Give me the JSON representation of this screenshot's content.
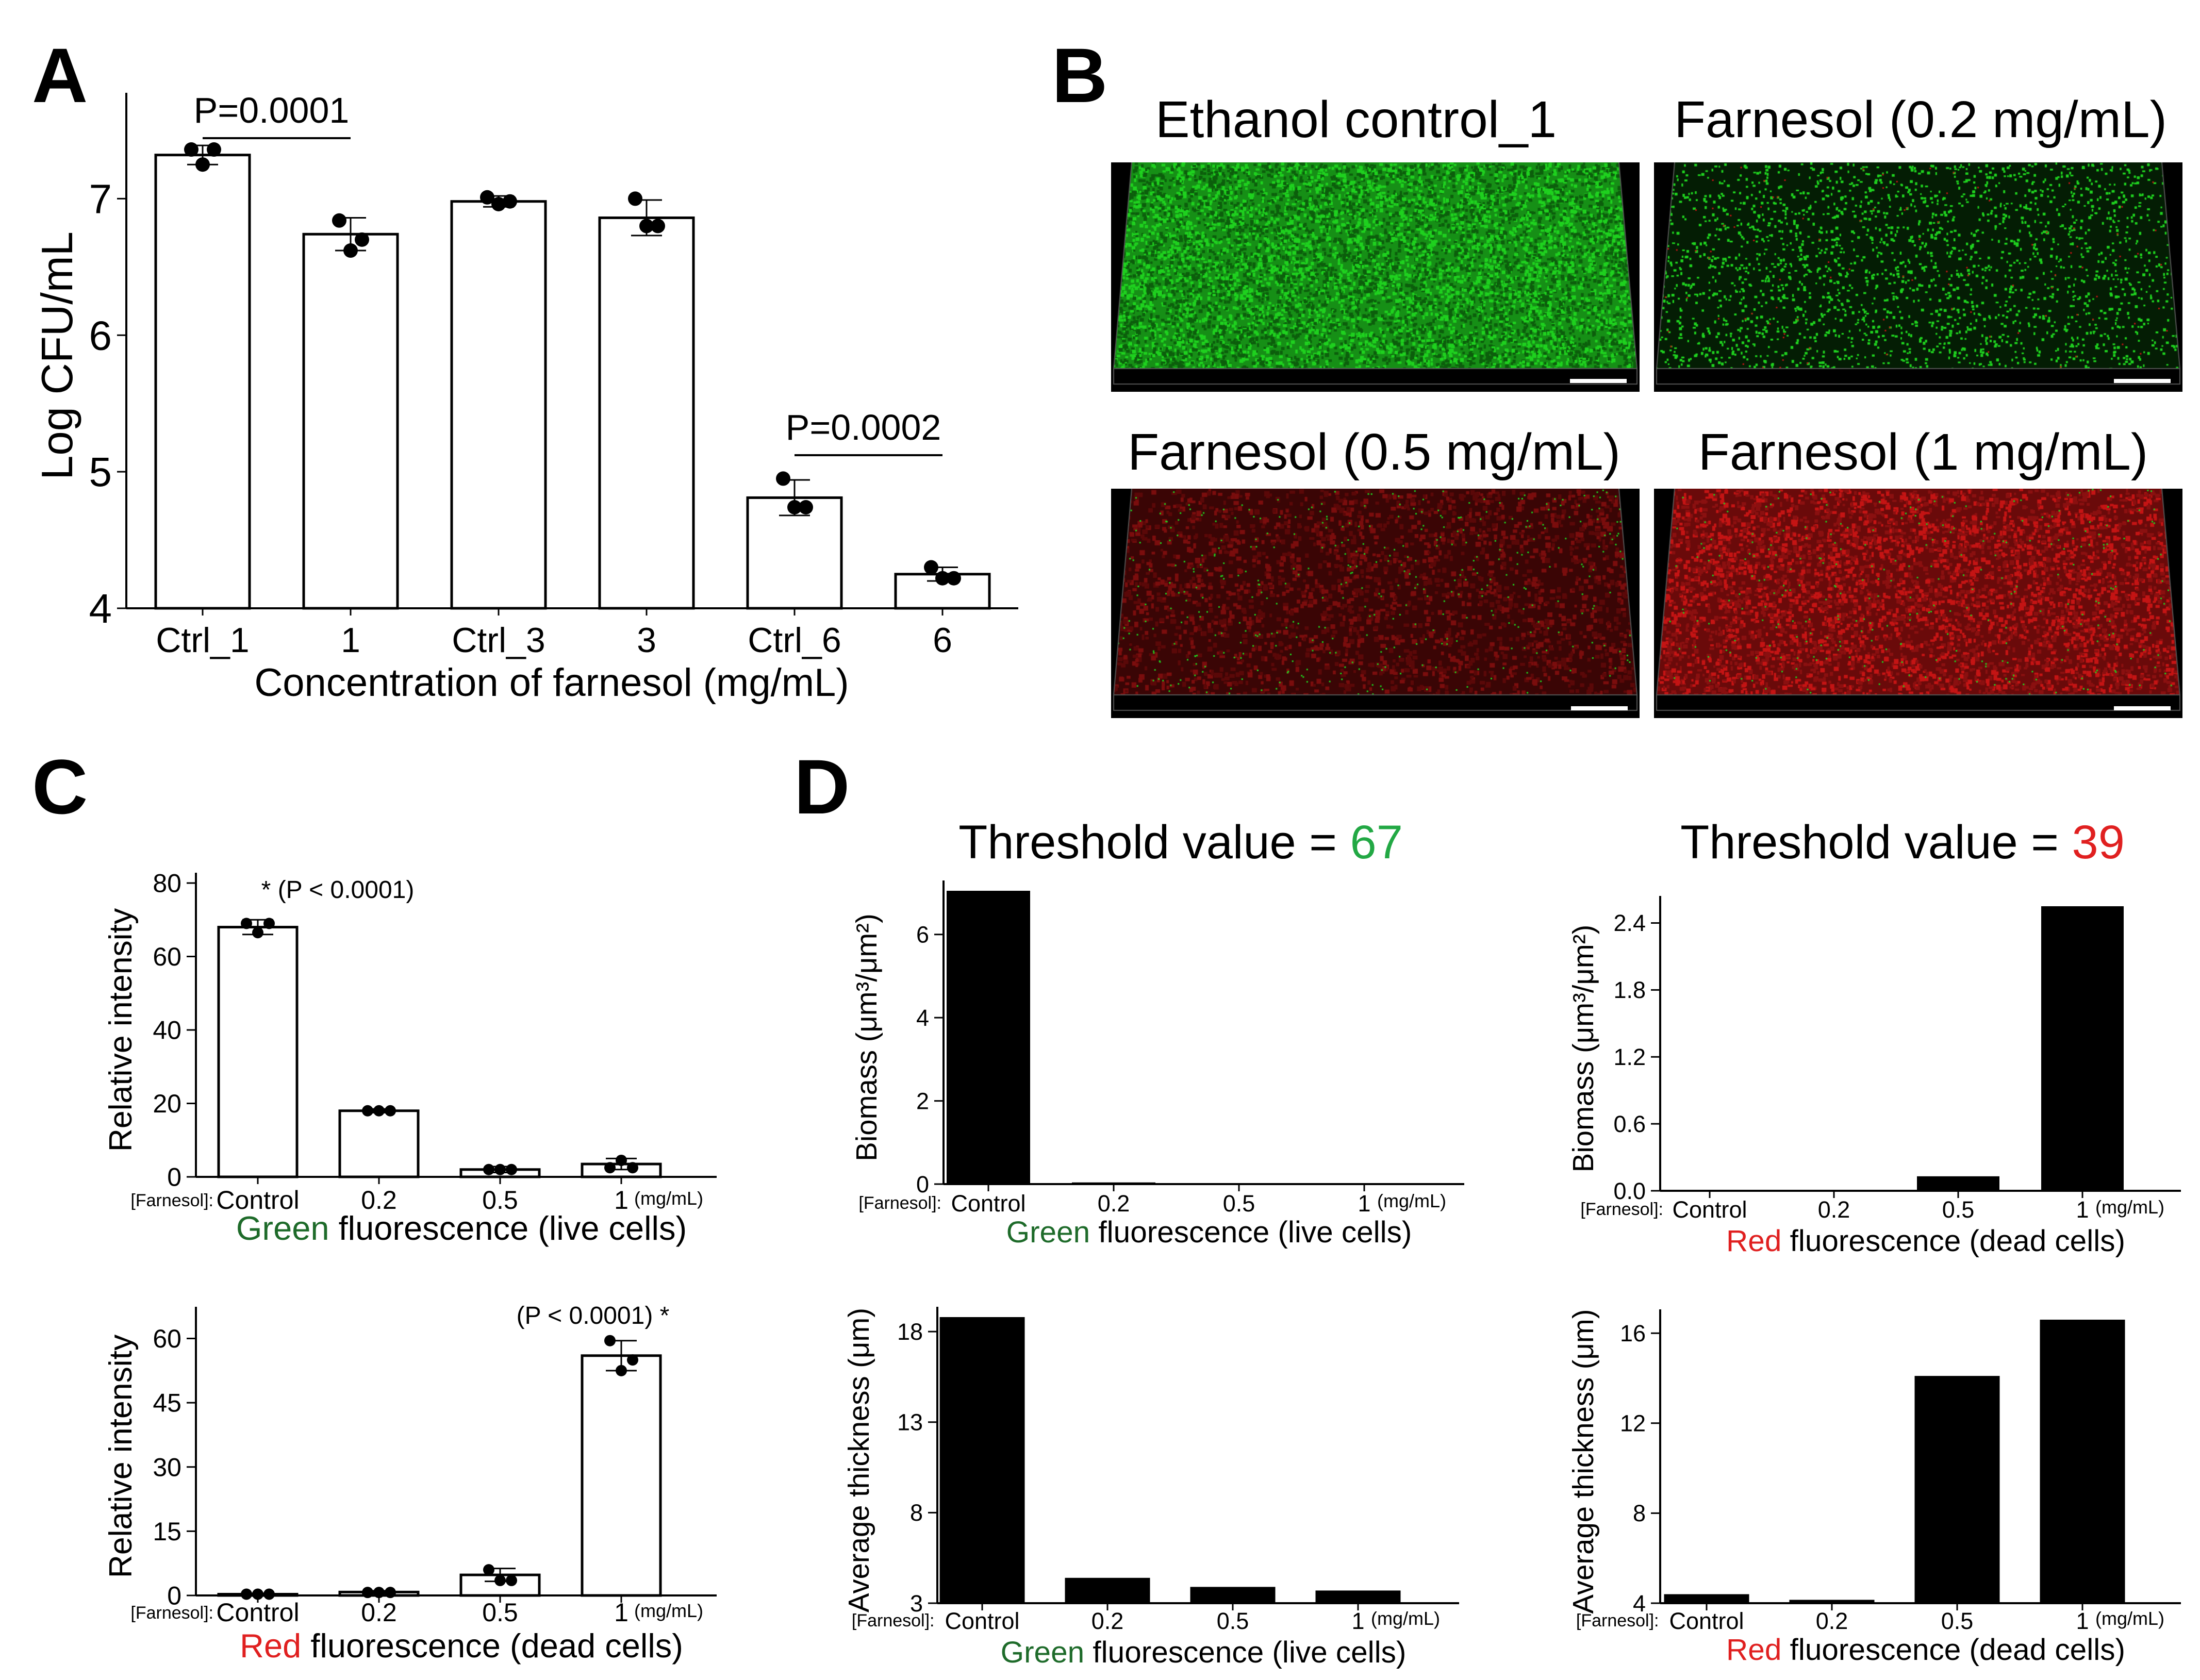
{
  "panels": {
    "A": "A",
    "B": "B",
    "C": "C",
    "D": "D"
  },
  "microscopy": {
    "titles": [
      "Ethanol control_1",
      "Farnesol (0.2 mg/mL)",
      "Farnesol (0.5 mg/mL)",
      "Farnesol (1 mg/mL)"
    ],
    "colors": {
      "live": "#1fd11f",
      "dead": "#c41414"
    }
  },
  "chart_data": [
    {
      "id": "A",
      "type": "bar",
      "categories": [
        "Ctrl_1",
        "1",
        "Ctrl_3",
        "3",
        "Ctrl_6",
        "6"
      ],
      "values": [
        7.32,
        6.74,
        6.98,
        6.86,
        4.81,
        4.25
      ],
      "error": [
        0.07,
        0.12,
        0.04,
        0.13,
        0.13,
        0.05
      ],
      "points": [
        [
          7.36,
          7.36,
          7.25
        ],
        [
          6.84,
          6.7,
          6.62
        ],
        [
          7.01,
          6.98,
          6.96
        ],
        [
          7.0,
          6.8,
          6.8
        ],
        [
          4.95,
          4.74,
          4.74
        ],
        [
          4.3,
          4.22,
          4.22
        ]
      ],
      "xlabel": "Concentration of farnesol (mg/mL)",
      "ylabel": "Log CFU/mL",
      "ylim": [
        4,
        7.7
      ],
      "yticks": [
        4,
        5,
        6,
        7
      ],
      "annotations": [
        {
          "text": "P=0.0001",
          "between": [
            0,
            1
          ]
        },
        {
          "text": "P=0.0002",
          "between": [
            4,
            5
          ]
        }
      ]
    },
    {
      "id": "C-green",
      "type": "bar",
      "categories": [
        "Control",
        "0.2",
        "0.5",
        "1"
      ],
      "values": [
        68,
        18,
        2,
        3.5
      ],
      "error": [
        2,
        0.5,
        0.8,
        1.5
      ],
      "points": [
        [
          69,
          69,
          66.5
        ],
        [
          18,
          18,
          18
        ],
        [
          2,
          2,
          2
        ],
        [
          2.5,
          2.5,
          4.5
        ]
      ],
      "ylabel": "Relative intensity",
      "ylim": [
        0,
        80
      ],
      "yticks": [
        0,
        20,
        40,
        60,
        80
      ],
      "prefix": "[Farnesol]:",
      "unit": "(mg/mL)",
      "xlabel_colored": "Green",
      "xlabel_rest": " fluorescence (live cells)",
      "annotation": "* (P < 0.0001)"
    },
    {
      "id": "C-red",
      "type": "bar",
      "categories": [
        "Control",
        "0.2",
        "0.5",
        "1"
      ],
      "values": [
        0.3,
        0.8,
        4.8,
        56
      ],
      "error": [
        0.2,
        0.3,
        1.5,
        3.5
      ],
      "points": [
        [
          0.3,
          0.3,
          0.3
        ],
        [
          0.7,
          0.7,
          0.7
        ],
        [
          6,
          3.5,
          3.5
        ],
        [
          59.5,
          55,
          52.5
        ]
      ],
      "ylabel": "Relative intensity",
      "ylim": [
        0,
        65
      ],
      "yticks": [
        0,
        15,
        30,
        45,
        60
      ],
      "prefix": "[Farnesol]:",
      "unit": "(mg/mL)",
      "xlabel_colored": "Red",
      "xlabel_rest": " fluorescence (dead cells)",
      "annotation": "(P < 0.0001) *"
    },
    {
      "id": "D-green-biomass",
      "type": "bar",
      "threshold_label": "Threshold value = ",
      "threshold_value": "67",
      "categories": [
        "Control",
        "0.2",
        "0.5",
        "1"
      ],
      "values": [
        7.05,
        0.04,
        0,
        0
      ],
      "ylabel": "Biomass (μm³/μm²)",
      "ylim": [
        0,
        7.05
      ],
      "yticks": [
        0,
        2,
        4,
        6
      ],
      "prefix": "[Farnesol]:",
      "unit": "(mg/mL)",
      "xlabel_colored": "Green",
      "xlabel_rest": " fluorescence (live cells)"
    },
    {
      "id": "D-red-biomass",
      "type": "bar",
      "threshold_label": "Threshold value = ",
      "threshold_value": "39",
      "categories": [
        "Control",
        "0.2",
        "0.5",
        "1"
      ],
      "values": [
        0,
        0,
        0.13,
        2.55
      ],
      "ylabel": "Biomass (μm³/μm²)",
      "ylim": [
        0,
        2.55
      ],
      "yticks": [
        "0.0",
        "0.6",
        "1.2",
        "1.8",
        "2.4"
      ],
      "prefix": "[Farnesol]:",
      "unit": "(mg/mL)",
      "xlabel_colored": "Red",
      "xlabel_rest": " fluorescence (dead cells)"
    },
    {
      "id": "D-green-thickness",
      "type": "bar",
      "categories": [
        "Control",
        "0.2",
        "0.5",
        "1"
      ],
      "values": [
        18.8,
        4.4,
        3.9,
        3.7
      ],
      "ylabel": "Average thickness (μm)",
      "ylim": [
        3,
        18.8
      ],
      "yticks": [
        3,
        8,
        13,
        18
      ],
      "prefix": "[Farnesol]:",
      "unit": "(mg/mL)",
      "xlabel_colored": "Green",
      "xlabel_rest": " fluorescence (live cells)"
    },
    {
      "id": "D-red-thickness",
      "type": "bar",
      "categories": [
        "Control",
        "0.2",
        "0.5",
        "1"
      ],
      "values": [
        4.4,
        4.15,
        14.1,
        16.6
      ],
      "ylabel": "Average thickness (μm)",
      "ylim": [
        4,
        16.6
      ],
      "yticks": [
        4,
        8,
        12,
        16
      ],
      "prefix": "[Farnesol]:",
      "unit": "(mg/mL)",
      "xlabel_colored": "Red",
      "xlabel_rest": " fluorescence (dead cells)"
    }
  ],
  "colors": {
    "green_text": "#1e6b2a",
    "threshold_green": "#22a844",
    "red_text": "#e02020",
    "bar_fill": "#000000"
  }
}
